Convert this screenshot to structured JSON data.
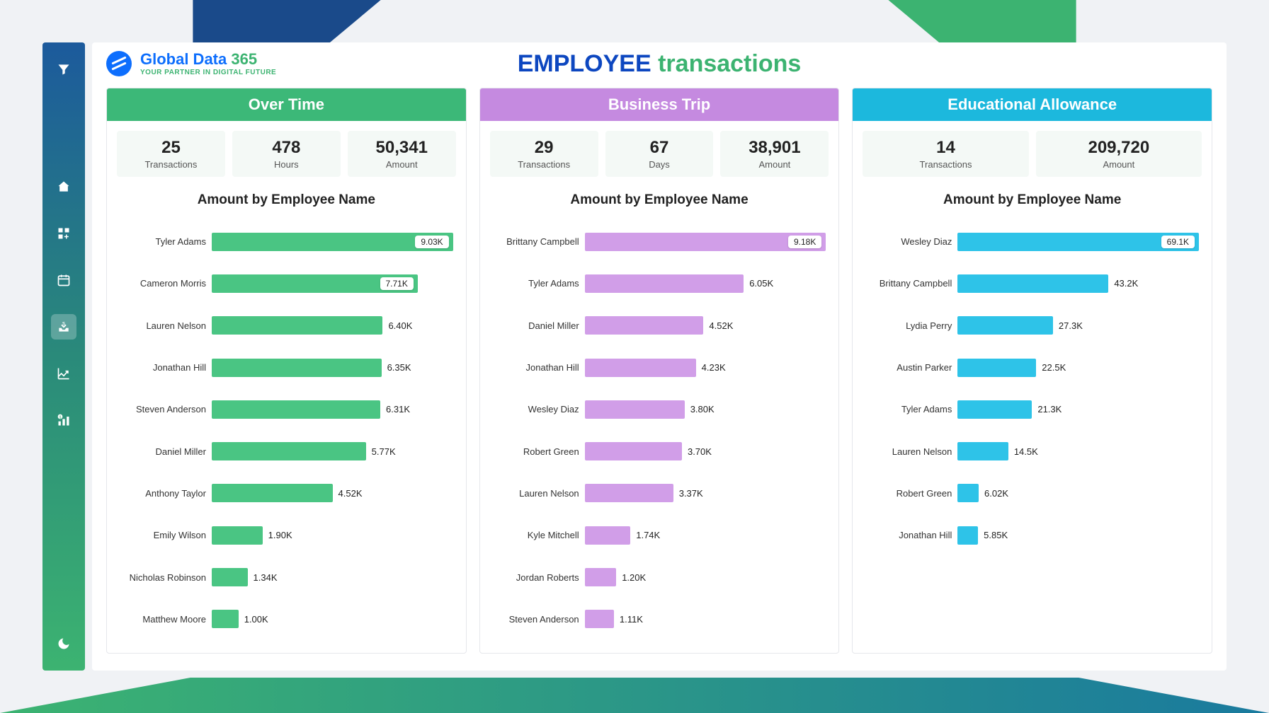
{
  "brand": {
    "name_main": "Global Data",
    "name_accent": "365",
    "tagline": "YOUR PARTNER IN DIGITAL FUTURE"
  },
  "page_title": {
    "word1": "EMPLOYEE",
    "word2": "transactions"
  },
  "colors": {
    "green": "#3cb878",
    "green_light": "#4ac583",
    "purple": "#c58ae0",
    "purple_light": "#d19ee8",
    "cyan": "#1cb8dd",
    "cyan_light": "#2ec3e8",
    "blue_brand": "#0d6efd",
    "title_blue": "#0d47c0",
    "stat_bg": "#f4f9f6"
  },
  "panels": [
    {
      "id": "overtime",
      "title": "Over Time",
      "header_color": "#3cb878",
      "bar_color": "#4ac583",
      "stats": [
        {
          "value": "25",
          "label": "Transactions"
        },
        {
          "value": "478",
          "label": "Hours"
        },
        {
          "value": "50,341",
          "label": "Amount"
        }
      ],
      "chart_title": "Amount by Employee Name",
      "max_value": 9.03,
      "bars": [
        {
          "name": "Tyler Adams",
          "value": 9.03,
          "label": "9.03K",
          "highlight": true
        },
        {
          "name": "Cameron Morris",
          "value": 7.71,
          "label": "7.71K",
          "highlight": true
        },
        {
          "name": "Lauren Nelson",
          "value": 6.4,
          "label": "6.40K"
        },
        {
          "name": "Jonathan Hill",
          "value": 6.35,
          "label": "6.35K"
        },
        {
          "name": "Steven Anderson",
          "value": 6.31,
          "label": "6.31K"
        },
        {
          "name": "Daniel Miller",
          "value": 5.77,
          "label": "5.77K"
        },
        {
          "name": "Anthony Taylor",
          "value": 4.52,
          "label": "4.52K"
        },
        {
          "name": "Emily Wilson",
          "value": 1.9,
          "label": "1.90K"
        },
        {
          "name": "Nicholas Robinson",
          "value": 1.34,
          "label": "1.34K"
        },
        {
          "name": "Matthew Moore",
          "value": 1.0,
          "label": "1.00K"
        }
      ]
    },
    {
      "id": "business-trip",
      "title": "Business Trip",
      "header_color": "#c58ae0",
      "bar_color": "#d19ee8",
      "stats": [
        {
          "value": "29",
          "label": "Transactions"
        },
        {
          "value": "67",
          "label": "Days"
        },
        {
          "value": "38,901",
          "label": "Amount"
        }
      ],
      "chart_title": "Amount by Employee Name",
      "max_value": 9.18,
      "bars": [
        {
          "name": "Brittany Campbell",
          "value": 9.18,
          "label": "9.18K",
          "highlight": true
        },
        {
          "name": "Tyler Adams",
          "value": 6.05,
          "label": "6.05K"
        },
        {
          "name": "Daniel Miller",
          "value": 4.52,
          "label": "4.52K"
        },
        {
          "name": "Jonathan Hill",
          "value": 4.23,
          "label": "4.23K"
        },
        {
          "name": "Wesley Diaz",
          "value": 3.8,
          "label": "3.80K"
        },
        {
          "name": "Robert Green",
          "value": 3.7,
          "label": "3.70K"
        },
        {
          "name": "Lauren Nelson",
          "value": 3.37,
          "label": "3.37K"
        },
        {
          "name": "Kyle Mitchell",
          "value": 1.74,
          "label": "1.74K"
        },
        {
          "name": "Jordan Roberts",
          "value": 1.2,
          "label": "1.20K"
        },
        {
          "name": "Steven Anderson",
          "value": 1.11,
          "label": "1.11K"
        }
      ]
    },
    {
      "id": "educational",
      "title": "Educational Allowance",
      "header_color": "#1cb8dd",
      "bar_color": "#2ec3e8",
      "stats": [
        {
          "value": "14",
          "label": "Transactions"
        },
        {
          "value": "209,720",
          "label": "Amount"
        }
      ],
      "chart_title": "Amount by Employee Name",
      "max_value": 69.1,
      "bars": [
        {
          "name": "Wesley Diaz",
          "value": 69.1,
          "label": "69.1K",
          "highlight": true
        },
        {
          "name": "Brittany Campbell",
          "value": 43.2,
          "label": "43.2K"
        },
        {
          "name": "Lydia Perry",
          "value": 27.3,
          "label": "27.3K"
        },
        {
          "name": "Austin Parker",
          "value": 22.5,
          "label": "22.5K"
        },
        {
          "name": "Tyler Adams",
          "value": 21.3,
          "label": "21.3K"
        },
        {
          "name": "Lauren Nelson",
          "value": 14.5,
          "label": "14.5K"
        },
        {
          "name": "Robert Green",
          "value": 6.02,
          "label": "6.02K"
        },
        {
          "name": "Jonathan Hill",
          "value": 5.85,
          "label": "5.85K"
        }
      ]
    }
  ]
}
